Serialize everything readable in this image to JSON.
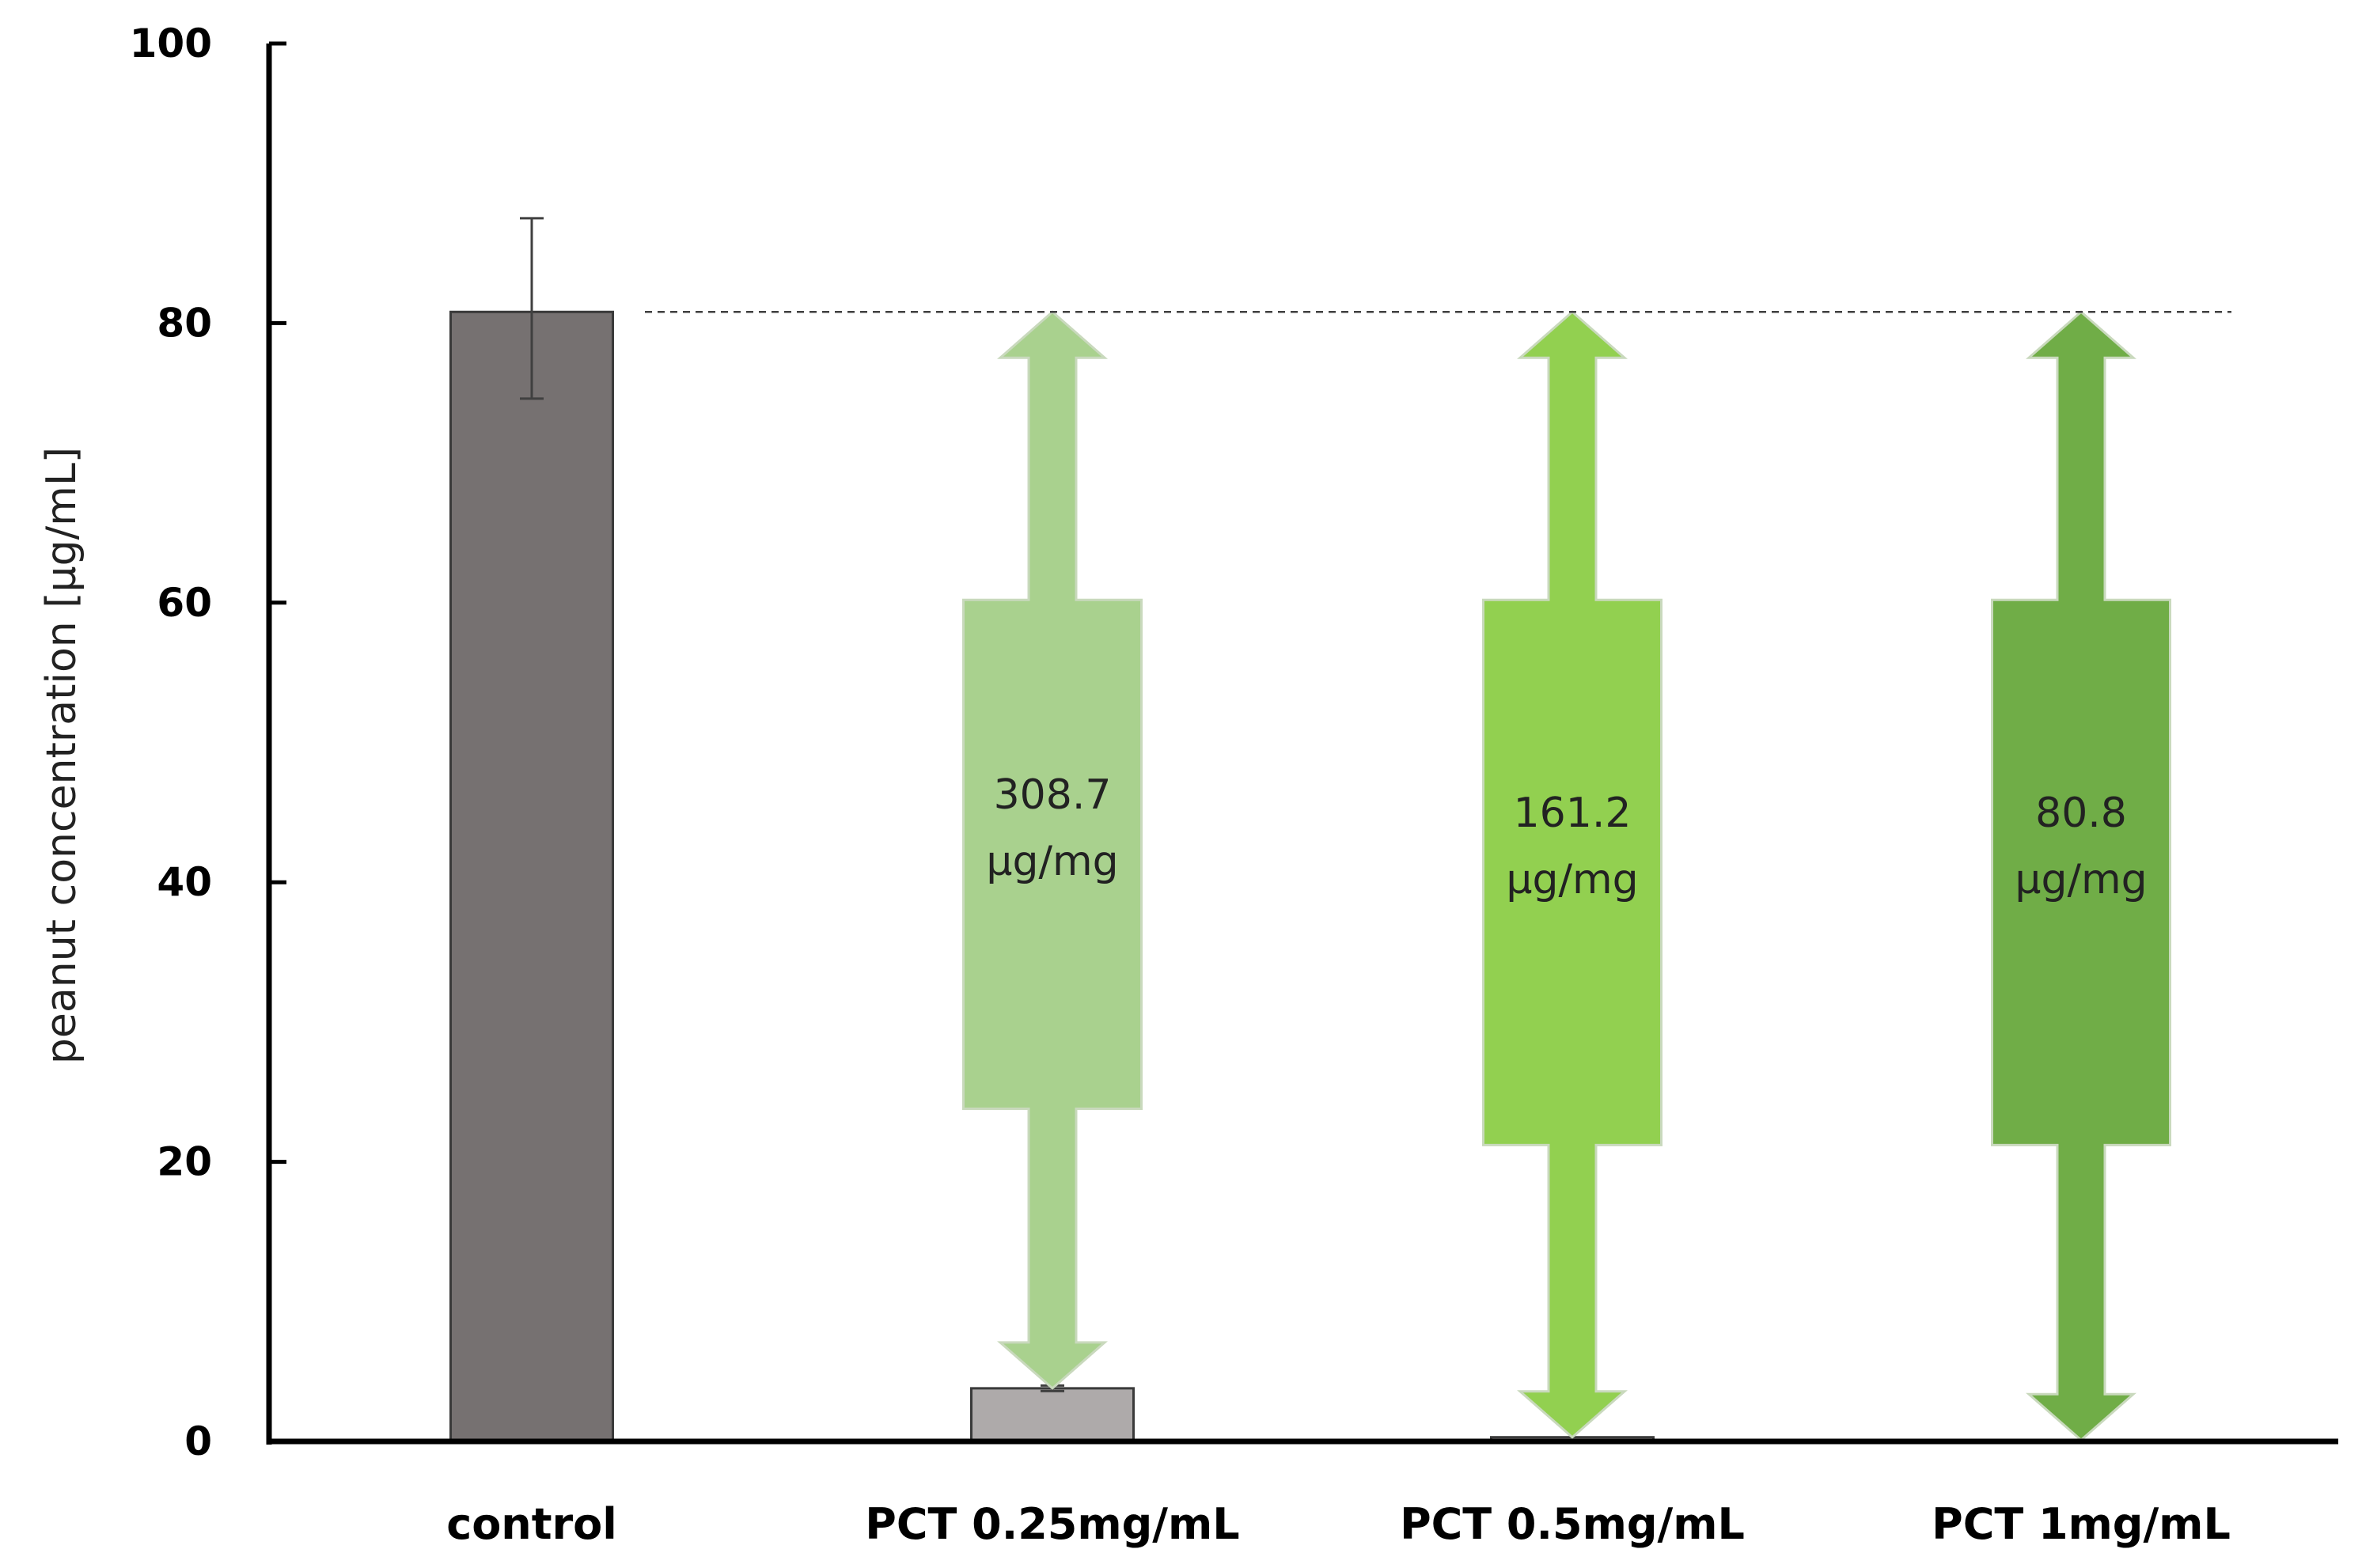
{
  "chart_data": {
    "type": "bar",
    "title": "",
    "xlabel": "",
    "ylabel": "peanut concentration [μg/mL]",
    "ylim": [
      0,
      100
    ],
    "yticks": [
      "0",
      "20",
      "40",
      "60",
      "80",
      "100"
    ],
    "grid": false,
    "categories": [
      "control",
      "PCT 0.25mg/mL",
      "PCT 0.5mg/mL",
      "PCT 1mg/mL"
    ],
    "values": [
      80.8,
      3.8,
      0.3,
      0.1
    ],
    "error": [
      [
        74.6,
        87.5
      ],
      [
        3.6,
        4.0
      ],
      null,
      null
    ],
    "bar_colors": [
      "#767171",
      "#aeaaaa",
      "#aeaaaa",
      "#aeaaaa"
    ],
    "reference_line": {
      "y": 80.8,
      "style": "dashed"
    },
    "reductions": [
      null,
      {
        "from": 80.8,
        "to": 3.8,
        "value": "308.7",
        "unit": "μg/mg",
        "color": "#a9d18e"
      },
      {
        "from": 80.8,
        "to": 0.3,
        "value": "161.2",
        "unit": "μg/mg",
        "color": "#92d050"
      },
      {
        "from": 80.8,
        "to": 0.1,
        "value": "80.8",
        "unit": "μg/mg",
        "color": "#70ad47"
      }
    ]
  }
}
